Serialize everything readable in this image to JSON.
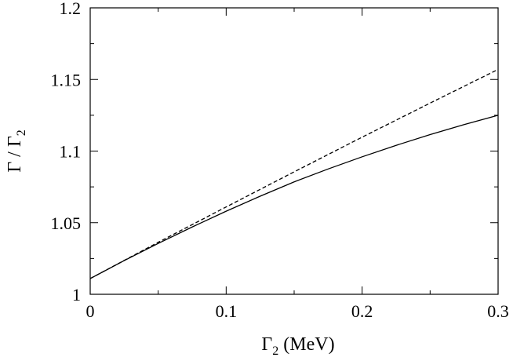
{
  "chart_data": {
    "type": "line",
    "xlabel": {
      "symbol": "Γ",
      "sub": "2",
      "unit": " (MeV)"
    },
    "ylabel": {
      "num": "Γ",
      "sep": " / ",
      "den": "Γ",
      "sub": "2"
    },
    "xlim": [
      0,
      0.3
    ],
    "ylim": [
      1,
      1.2
    ],
    "xticks": [
      {
        "value": 0,
        "label": "0"
      },
      {
        "value": 0.1,
        "label": "0.1"
      },
      {
        "value": 0.2,
        "label": "0.2"
      },
      {
        "value": 0.3,
        "label": "0.3"
      }
    ],
    "yticks": [
      {
        "value": 1,
        "label": "1"
      },
      {
        "value": 1.05,
        "label": "1.05"
      },
      {
        "value": 1.1,
        "label": "1.1"
      },
      {
        "value": 1.15,
        "label": "1.15"
      },
      {
        "value": 1.2,
        "label": "1.2"
      }
    ],
    "x_minor_step": 0.05,
    "y_minor_step": 0.025,
    "grid": false,
    "series": [
      {
        "style": "solid",
        "color": "#000000",
        "x": [
          0,
          0.025,
          0.05,
          0.075,
          0.1,
          0.125,
          0.15,
          0.175,
          0.2,
          0.225,
          0.25,
          0.275,
          0.3
        ],
        "y": [
          1.011,
          1.0235,
          1.0355,
          1.047,
          1.058,
          1.0685,
          1.0785,
          1.0875,
          1.096,
          1.104,
          1.1115,
          1.1185,
          1.125
        ]
      },
      {
        "style": "dashed",
        "color": "#000000",
        "x": [
          0,
          0.05,
          0.1,
          0.15,
          0.2,
          0.25,
          0.3
        ],
        "y": [
          1.011,
          1.0363,
          1.061,
          1.0855,
          1.1097,
          1.1335,
          1.157
        ]
      }
    ]
  }
}
